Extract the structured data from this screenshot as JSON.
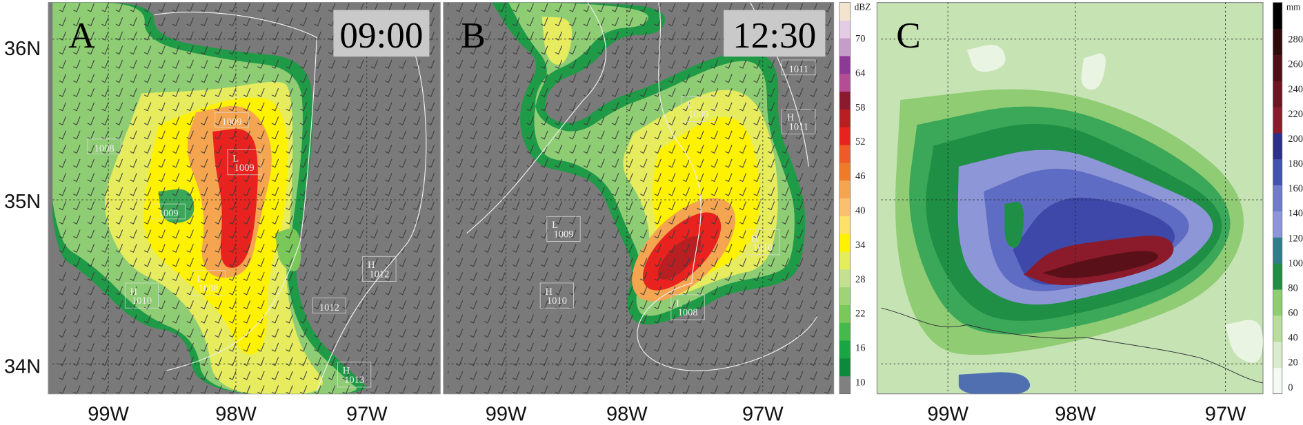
{
  "panels": [
    {
      "letter": "A",
      "time": "09:00",
      "pressure_labels": [
        {
          "value": "1009"
        },
        {
          "value": "1008"
        },
        {
          "symbol": "L",
          "value": "1009"
        },
        {
          "value": "1009"
        },
        {
          "symbol": "L",
          "value": "1008"
        },
        {
          "symbol": "H",
          "value": "1010"
        },
        {
          "symbol": "H",
          "value": "1012"
        },
        {
          "value": "1012"
        },
        {
          "symbol": "H",
          "value": "1013"
        }
      ]
    },
    {
      "letter": "B",
      "time": "12:30",
      "pressure_labels": [
        {
          "value": "1011"
        },
        {
          "symbol": "L",
          "value": "1009"
        },
        {
          "symbol": "H",
          "value": "1011"
        },
        {
          "symbol": "L",
          "value": "1009"
        },
        {
          "symbol": "H",
          "value": "1010"
        },
        {
          "symbol": "H",
          "value": "1010"
        },
        {
          "symbol": "L",
          "value": "1008"
        }
      ]
    },
    {
      "letter": "C"
    }
  ],
  "lat_labels": [
    "36N",
    "35N",
    "34N"
  ],
  "lon_labels": [
    "99W",
    "98W",
    "97W"
  ],
  "reflectivity_colorbar": {
    "unit": "dBZ",
    "ticks": [
      70,
      64,
      58,
      52,
      46,
      40,
      34,
      28,
      22,
      16,
      10
    ]
  },
  "rainfall_colorbar": {
    "unit": "mm",
    "ticks": [
      280,
      260,
      240,
      220,
      200,
      180,
      160,
      140,
      120,
      100,
      80,
      60,
      40,
      20,
      0
    ]
  }
}
